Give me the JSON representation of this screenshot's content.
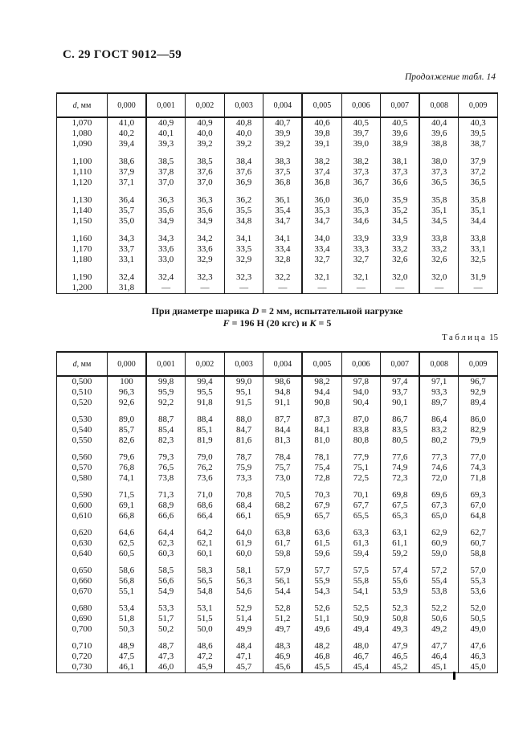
{
  "style": {
    "ink_color": "#161616",
    "paper_color": "#ffffff"
  },
  "page": {
    "header_title": "С. 29 ГОСТ 9012—59",
    "table14_continuation_label": "Продолжение табл. 14",
    "table15_label_word": "Таблица",
    "table15_label_number": "15"
  },
  "caption": {
    "line1_parts": [
      "При диаметре шарика ",
      "D",
      " = 2 мм, испытательной нагрузке"
    ],
    "line2_parts": [
      "F",
      " = 196 Н (20 кгс) и ",
      "К",
      " = 5"
    ]
  },
  "table14": {
    "unit_italic": "d",
    "unit_rest": ", мм",
    "col_headers": [
      "0,000",
      "0,001",
      "0,002",
      "0,003",
      "0,004",
      "0,005",
      "0,006",
      "0,007",
      "0,008",
      "0,009"
    ],
    "groups": [
      [
        {
          "d": "1,070",
          "v": [
            "41,0",
            "40,9",
            "40,9",
            "40,8",
            "40,7",
            "40,6",
            "40,5",
            "40,5",
            "40,4",
            "40,3"
          ]
        },
        {
          "d": "1,080",
          "v": [
            "40,2",
            "40,1",
            "40,0",
            "40,0",
            "39,9",
            "39,8",
            "39,7",
            "39,6",
            "39,6",
            "39,5"
          ]
        },
        {
          "d": "1,090",
          "v": [
            "39,4",
            "39,3",
            "39,2",
            "39,2",
            "39,2",
            "39,1",
            "39,0",
            "38,9",
            "38,8",
            "38,7"
          ]
        }
      ],
      [
        {
          "d": "1,100",
          "v": [
            "38,6",
            "38,5",
            "38,5",
            "38,4",
            "38,3",
            "38,2",
            "38,2",
            "38,1",
            "38,0",
            "37,9"
          ]
        },
        {
          "d": "1,110",
          "v": [
            "37,9",
            "37,8",
            "37,6",
            "37,6",
            "37,5",
            "37,4",
            "37,3",
            "37,3",
            "37,3",
            "37,2"
          ]
        },
        {
          "d": "1,120",
          "v": [
            "37,1",
            "37,0",
            "37,0",
            "36,9",
            "36,8",
            "36,8",
            "36,7",
            "36,6",
            "36,5",
            "36,5"
          ]
        }
      ],
      [
        {
          "d": "1,130",
          "v": [
            "36,4",
            "36,3",
            "36,3",
            "36,2",
            "36,1",
            "36,0",
            "36,0",
            "35,9",
            "35,8",
            "35,8"
          ]
        },
        {
          "d": "1,140",
          "v": [
            "35,7",
            "35,6",
            "35,6",
            "35,5",
            "35,4",
            "35,3",
            "35,3",
            "35,2",
            "35,1",
            "35,1"
          ]
        },
        {
          "d": "1,150",
          "v": [
            "35,0",
            "34,9",
            "34,9",
            "34,8",
            "34,7",
            "34,7",
            "34,6",
            "34,5",
            "34,5",
            "34,4"
          ]
        }
      ],
      [
        {
          "d": "1,160",
          "v": [
            "34,3",
            "34,3",
            "34,2",
            "34,1",
            "34,1",
            "34,0",
            "33,9",
            "33,9",
            "33,8",
            "33,8"
          ]
        },
        {
          "d": "1,170",
          "v": [
            "33,7",
            "33,6",
            "33,6",
            "33,5",
            "33,4",
            "33,4",
            "33,3",
            "33,2",
            "33,2",
            "33,1"
          ]
        },
        {
          "d": "1,180",
          "v": [
            "33,1",
            "33,0",
            "32,9",
            "32,9",
            "32,8",
            "32,7",
            "32,7",
            "32,6",
            "32,6",
            "32,5"
          ]
        }
      ],
      [
        {
          "d": "1,190",
          "v": [
            "32,4",
            "32,4",
            "32,3",
            "32,3",
            "32,2",
            "32,1",
            "32,1",
            "32,0",
            "32,0",
            "31,9"
          ]
        },
        {
          "d": "1,200",
          "v": [
            "31,8",
            "—",
            "—",
            "—",
            "—",
            "—",
            "—",
            "—",
            "—",
            "—"
          ]
        }
      ]
    ]
  },
  "table15": {
    "unit_italic": "d",
    "unit_rest": ", мм",
    "col_headers": [
      "0,000",
      "0,001",
      "0,002",
      "0,003",
      "0,004",
      "0,005",
      "0,006",
      "0,007",
      "0,008",
      "0,009"
    ],
    "groups": [
      [
        {
          "d": "0,500",
          "v": [
            "100",
            "99,8",
            "99,4",
            "99,0",
            "98,6",
            "98,2",
            "97,8",
            "97,4",
            "97,1",
            "96,7"
          ]
        },
        {
          "d": "0,510",
          "v": [
            "96,3",
            "95,9",
            "95,5",
            "95,1",
            "94,8",
            "94,4",
            "94,0",
            "93,7",
            "93,3",
            "92,9"
          ]
        },
        {
          "d": "0,520",
          "v": [
            "92,6",
            "92,2",
            "91,8",
            "91,5",
            "91,1",
            "90,8",
            "90,4",
            "90,1",
            "89,7",
            "89,4"
          ]
        }
      ],
      [
        {
          "d": "0,530",
          "v": [
            "89,0",
            "88,7",
            "88,4",
            "88,0",
            "87,7",
            "87,3",
            "87,0",
            "86,7",
            "86,4",
            "86,0"
          ]
        },
        {
          "d": "0,540",
          "v": [
            "85,7",
            "85,4",
            "85,1",
            "84,7",
            "84,4",
            "84,1",
            "83,8",
            "83,5",
            "83,2",
            "82,9"
          ]
        },
        {
          "d": "0,550",
          "v": [
            "82,6",
            "82,3",
            "81,9",
            "81,6",
            "81,3",
            "81,0",
            "80,8",
            "80,5",
            "80,2",
            "79,9"
          ]
        }
      ],
      [
        {
          "d": "0,560",
          "v": [
            "79,6",
            "79,3",
            "79,0",
            "78,7",
            "78,4",
            "78,1",
            "77,9",
            "77,6",
            "77,3",
            "77,0"
          ]
        },
        {
          "d": "0,570",
          "v": [
            "76,8",
            "76,5",
            "76,2",
            "75,9",
            "75,7",
            "75,4",
            "75,1",
            "74,9",
            "74,6",
            "74,3"
          ]
        },
        {
          "d": "0,580",
          "v": [
            "74,1",
            "73,8",
            "73,6",
            "73,3",
            "73,0",
            "72,8",
            "72,5",
            "72,3",
            "72,0",
            "71,8"
          ]
        }
      ],
      [
        {
          "d": "0,590",
          "v": [
            "71,5",
            "71,3",
            "71,0",
            "70,8",
            "70,5",
            "70,3",
            "70,1",
            "69,8",
            "69,6",
            "69,3"
          ]
        },
        {
          "d": "0,600",
          "v": [
            "69,1",
            "68,9",
            "68,6",
            "68,4",
            "68,2",
            "67,9",
            "67,7",
            "67,5",
            "67,3",
            "67,0"
          ]
        },
        {
          "d": "0,610",
          "v": [
            "66,8",
            "66,6",
            "66,4",
            "66,1",
            "65,9",
            "65,7",
            "65,5",
            "65,3",
            "65,0",
            "64,8"
          ]
        }
      ],
      [
        {
          "d": "0,620",
          "v": [
            "64,6",
            "64,4",
            "64,2",
            "64,0",
            "63,8",
            "63,6",
            "63,3",
            "63,1",
            "62,9",
            "62,7"
          ]
        },
        {
          "d": "0,630",
          "v": [
            "62,5",
            "62,3",
            "62,1",
            "61,9",
            "61,7",
            "61,5",
            "61,3",
            "61,1",
            "60,9",
            "60,7"
          ]
        },
        {
          "d": "0,640",
          "v": [
            "60,5",
            "60,3",
            "60,1",
            "60,0",
            "59,8",
            "59,6",
            "59,4",
            "59,2",
            "59,0",
            "58,8"
          ]
        }
      ],
      [
        {
          "d": "0,650",
          "v": [
            "58,6",
            "58,5",
            "58,3",
            "58,1",
            "57,9",
            "57,7",
            "57,5",
            "57,4",
            "57,2",
            "57,0"
          ]
        },
        {
          "d": "0,660",
          "v": [
            "56,8",
            "56,6",
            "56,5",
            "56,3",
            "56,1",
            "55,9",
            "55,8",
            "55,6",
            "55,4",
            "55,3"
          ]
        },
        {
          "d": "0,670",
          "v": [
            "55,1",
            "54,9",
            "54,8",
            "54,6",
            "54,4",
            "54,3",
            "54,1",
            "53,9",
            "53,8",
            "53,6"
          ]
        }
      ],
      [
        {
          "d": "0,680",
          "v": [
            "53,4",
            "53,3",
            "53,1",
            "52,9",
            "52,8",
            "52,6",
            "52,5",
            "52,3",
            "52,2",
            "52,0"
          ]
        },
        {
          "d": "0,690",
          "v": [
            "51,8",
            "51,7",
            "51,5",
            "51,4",
            "51,2",
            "51,1",
            "50,9",
            "50,8",
            "50,6",
            "50,5"
          ]
        },
        {
          "d": "0,700",
          "v": [
            "50,3",
            "50,2",
            "50,0",
            "49,9",
            "49,7",
            "49,6",
            "49,4",
            "49,3",
            "49,2",
            "49,0"
          ]
        }
      ],
      [
        {
          "d": "0,710",
          "v": [
            "48,9",
            "48,7",
            "48,6",
            "48,4",
            "48,3",
            "48,2",
            "48,0",
            "47,9",
            "47,7",
            "47,6"
          ]
        },
        {
          "d": "0,720",
          "v": [
            "47,5",
            "47,3",
            "47,2",
            "47,1",
            "46,9",
            "46,8",
            "46,7",
            "46,5",
            "46,4",
            "46,3"
          ]
        },
        {
          "d": "0,730",
          "v": [
            "46,1",
            "46,0",
            "45,9",
            "45,7",
            "45,6",
            "45,5",
            "45,4",
            "45,2",
            "45,1",
            "45,0"
          ]
        }
      ]
    ]
  }
}
